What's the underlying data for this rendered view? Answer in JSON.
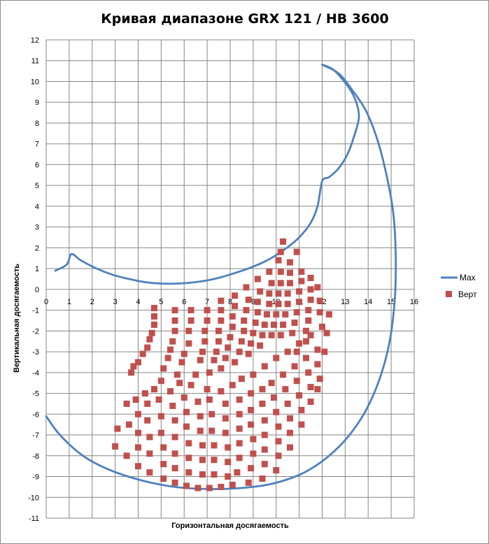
{
  "chart_data": {
    "type": "scatter",
    "title": "Кривая диапазоне GRX 121 / HB 3600",
    "xlabel": "Горизонтальная  досягаемость",
    "ylabel": "Вертикальная  досягаемость",
    "xlim": [
      0,
      16
    ],
    "ylim": [
      -11,
      12
    ],
    "xticks": [
      0,
      1,
      2,
      3,
      4,
      5,
      6,
      7,
      8,
      9,
      10,
      11,
      12,
      13,
      14,
      15,
      16
    ],
    "yticks": [
      12,
      11,
      10,
      9,
      8,
      7,
      6,
      5,
      4,
      3,
      2,
      1,
      0,
      -1,
      -2,
      -3,
      -4,
      -5,
      -6,
      -7,
      -8,
      -9,
      -10,
      -11
    ],
    "grid": true,
    "legend_position": "right",
    "colors": {
      "max": "#4f81bd",
      "vert": "#c0504d",
      "grid": "#868686"
    },
    "series": [
      {
        "name": "Max",
        "kind": "line",
        "points": [
          [
            0.4,
            0.9
          ],
          [
            0.9,
            1.2
          ],
          [
            1.1,
            1.7
          ],
          [
            1.5,
            1.4
          ],
          [
            2.2,
            1.0
          ],
          [
            2.9,
            0.7
          ],
          [
            3.6,
            0.5
          ],
          [
            4.3,
            0.35
          ],
          [
            5.0,
            0.28
          ],
          [
            5.7,
            0.28
          ],
          [
            6.5,
            0.35
          ],
          [
            7.3,
            0.5
          ],
          [
            8.1,
            0.75
          ],
          [
            8.9,
            1.05
          ],
          [
            9.7,
            1.45
          ],
          [
            10.4,
            1.95
          ],
          [
            11.0,
            2.5
          ],
          [
            11.5,
            3.2
          ],
          [
            11.8,
            4.0
          ],
          [
            12.0,
            5.2
          ],
          [
            12.3,
            5.4
          ],
          [
            12.7,
            5.8
          ],
          [
            13.1,
            6.5
          ],
          [
            13.4,
            7.4
          ],
          [
            13.6,
            8.3
          ],
          [
            13.45,
            9.1
          ],
          [
            13.1,
            9.8
          ],
          [
            12.5,
            10.55
          ],
          [
            12.0,
            10.8
          ],
          [
            12.7,
            10.4
          ],
          [
            13.3,
            9.6
          ],
          [
            13.9,
            8.6
          ],
          [
            14.4,
            7.2
          ],
          [
            14.8,
            5.5
          ],
          [
            15.1,
            3.6
          ],
          [
            15.2,
            1.5
          ],
          [
            15.15,
            -0.6
          ],
          [
            14.9,
            -2.7
          ],
          [
            14.4,
            -4.6
          ],
          [
            13.7,
            -6.2
          ],
          [
            12.7,
            -7.6
          ],
          [
            11.4,
            -8.7
          ],
          [
            10.0,
            -9.3
          ],
          [
            8.5,
            -9.55
          ],
          [
            7.0,
            -9.6
          ],
          [
            5.6,
            -9.5
          ],
          [
            4.2,
            -9.2
          ],
          [
            2.8,
            -8.7
          ],
          [
            1.6,
            -8.0
          ],
          [
            0.6,
            -7.0
          ],
          [
            0.0,
            -6.1
          ]
        ]
      },
      {
        "name": "Верт",
        "kind": "markers",
        "points": [
          [
            4.7,
            -0.9
          ],
          [
            4.7,
            -1.3
          ],
          [
            4.7,
            -1.7
          ],
          [
            4.6,
            -2.1
          ],
          [
            4.5,
            -2.4
          ],
          [
            4.4,
            -2.8
          ],
          [
            4.2,
            -3.1
          ],
          [
            4.0,
            -3.5
          ],
          [
            3.8,
            -3.7
          ],
          [
            3.7,
            -4.0
          ],
          [
            5.6,
            -1.0
          ],
          [
            5.6,
            -1.5
          ],
          [
            5.6,
            -2.0
          ],
          [
            5.5,
            -2.5
          ],
          [
            5.4,
            -2.9
          ],
          [
            5.3,
            -3.3
          ],
          [
            5.1,
            -3.8
          ],
          [
            6.3,
            -1.0
          ],
          [
            6.3,
            -1.5
          ],
          [
            6.2,
            -2.0
          ],
          [
            6.2,
            -2.6
          ],
          [
            6.0,
            -3.1
          ],
          [
            5.9,
            -3.5
          ],
          [
            5.7,
            -4.1
          ],
          [
            7.0,
            -1.0
          ],
          [
            7.0,
            -1.5
          ],
          [
            6.9,
            -2.0
          ],
          [
            6.9,
            -2.5
          ],
          [
            6.8,
            -3.0
          ],
          [
            6.7,
            -3.4
          ],
          [
            6.5,
            -4.1
          ],
          [
            7.6,
            -0.55
          ],
          [
            7.6,
            -1.0
          ],
          [
            7.6,
            -1.5
          ],
          [
            7.5,
            -2.0
          ],
          [
            7.5,
            -2.5
          ],
          [
            7.4,
            -3.0
          ],
          [
            7.3,
            -3.4
          ],
          [
            7.1,
            -4.0
          ],
          [
            8.2,
            -0.3
          ],
          [
            8.2,
            -0.8
          ],
          [
            8.1,
            -1.3
          ],
          [
            8.1,
            -1.8
          ],
          [
            8.0,
            -2.3
          ],
          [
            7.9,
            -2.8
          ],
          [
            7.8,
            -3.3
          ],
          [
            7.6,
            -3.8
          ],
          [
            8.7,
            0.1
          ],
          [
            8.8,
            -0.5
          ],
          [
            8.7,
            -1.0
          ],
          [
            8.6,
            -1.5
          ],
          [
            8.6,
            -2.0
          ],
          [
            8.5,
            -2.5
          ],
          [
            8.4,
            -3.0
          ],
          [
            8.2,
            -3.5
          ],
          [
            9.2,
            0.5
          ],
          [
            9.3,
            -0.1
          ],
          [
            9.2,
            -0.6
          ],
          [
            9.2,
            -1.1
          ],
          [
            9.1,
            -1.6
          ],
          [
            9.0,
            -2.1
          ],
          [
            8.9,
            -2.6
          ],
          [
            8.8,
            -3.1
          ],
          [
            9.7,
            0.85
          ],
          [
            9.8,
            0.3
          ],
          [
            9.7,
            -0.2
          ],
          [
            9.7,
            -0.7
          ],
          [
            9.6,
            -1.2
          ],
          [
            9.5,
            -1.7
          ],
          [
            9.4,
            -2.2
          ],
          [
            9.3,
            -2.7
          ],
          [
            10.1,
            1.4
          ],
          [
            10.2,
            0.85
          ],
          [
            10.2,
            0.3
          ],
          [
            10.1,
            -0.2
          ],
          [
            10.1,
            -0.7
          ],
          [
            10.0,
            -1.2
          ],
          [
            9.9,
            -1.7
          ],
          [
            9.8,
            -2.2
          ],
          [
            10.3,
            2.3
          ],
          [
            10.2,
            1.8
          ],
          [
            10.6,
            1.3
          ],
          [
            10.6,
            0.8
          ],
          [
            10.6,
            0.3
          ],
          [
            10.5,
            -0.2
          ],
          [
            10.5,
            -0.7
          ],
          [
            10.4,
            -1.2
          ],
          [
            10.3,
            -1.7
          ],
          [
            10.2,
            -2.2
          ],
          [
            10.9,
            1.8
          ],
          [
            11.1,
            0.85
          ],
          [
            11.1,
            0.4
          ],
          [
            11.0,
            -0.1
          ],
          [
            11.0,
            -0.6
          ],
          [
            10.9,
            -1.1
          ],
          [
            10.8,
            -1.6
          ],
          [
            10.7,
            -2.1
          ],
          [
            11.5,
            0.55
          ],
          [
            11.5,
            0.0
          ],
          [
            11.5,
            -0.5
          ],
          [
            11.4,
            -1.0
          ],
          [
            11.4,
            -1.5
          ],
          [
            11.3,
            -2.0
          ],
          [
            11.3,
            -2.5
          ],
          [
            11.8,
            0.1
          ],
          [
            11.9,
            -0.55
          ],
          [
            11.9,
            -1.1
          ],
          [
            12.0,
            -1.8
          ],
          [
            12.2,
            -2.1
          ],
          [
            12.1,
            -3.0
          ],
          [
            12.3,
            -1.2
          ],
          [
            3.1,
            -6.7
          ],
          [
            3.0,
            -7.55
          ],
          [
            3.5,
            -5.5
          ],
          [
            3.6,
            -6.5
          ],
          [
            3.5,
            -8.0
          ],
          [
            3.9,
            -5.3
          ],
          [
            4.0,
            -6.0
          ],
          [
            4.0,
            -6.9
          ],
          [
            4.0,
            -7.6
          ],
          [
            4.0,
            -8.5
          ],
          [
            4.3,
            -5.0
          ],
          [
            4.4,
            -5.5
          ],
          [
            4.4,
            -6.3
          ],
          [
            4.5,
            -7.1
          ],
          [
            4.5,
            -7.9
          ],
          [
            4.5,
            -8.8
          ],
          [
            4.7,
            -4.8
          ],
          [
            4.9,
            -5.3
          ],
          [
            5.0,
            -6.1
          ],
          [
            5.0,
            -6.9
          ],
          [
            5.1,
            -7.6
          ],
          [
            5.1,
            -8.4
          ],
          [
            5.1,
            -9.1
          ],
          [
            5.0,
            -4.4
          ],
          [
            5.4,
            -4.9
          ],
          [
            5.5,
            -5.6
          ],
          [
            5.6,
            -6.3
          ],
          [
            5.6,
            -7.1
          ],
          [
            5.6,
            -7.9
          ],
          [
            5.6,
            -8.6
          ],
          [
            5.6,
            -9.3
          ],
          [
            5.8,
            -4.5
          ],
          [
            6.0,
            -5.2
          ],
          [
            6.1,
            -5.9
          ],
          [
            6.1,
            -6.6
          ],
          [
            6.2,
            -7.4
          ],
          [
            6.2,
            -8.1
          ],
          [
            6.2,
            -8.8
          ],
          [
            6.1,
            -9.45
          ],
          [
            6.3,
            -4.6
          ],
          [
            6.6,
            -5.4
          ],
          [
            6.7,
            -6.1
          ],
          [
            6.7,
            -6.8
          ],
          [
            6.8,
            -7.5
          ],
          [
            6.8,
            -8.2
          ],
          [
            6.8,
            -8.9
          ],
          [
            6.6,
            -9.55
          ],
          [
            7.0,
            -4.8
          ],
          [
            7.1,
            -5.3
          ],
          [
            7.2,
            -6.0
          ],
          [
            7.2,
            -6.8
          ],
          [
            7.3,
            -7.5
          ],
          [
            7.3,
            -8.2
          ],
          [
            7.3,
            -8.9
          ],
          [
            7.1,
            -9.55
          ],
          [
            7.6,
            -4.9
          ],
          [
            7.8,
            -5.5
          ],
          [
            7.8,
            -6.2
          ],
          [
            7.8,
            -6.9
          ],
          [
            7.9,
            -7.6
          ],
          [
            7.9,
            -8.3
          ],
          [
            7.9,
            -9.0
          ],
          [
            7.6,
            -9.5
          ],
          [
            8.1,
            -4.6
          ],
          [
            8.4,
            -5.3
          ],
          [
            8.4,
            -6.0
          ],
          [
            8.4,
            -6.7
          ],
          [
            8.4,
            -7.4
          ],
          [
            8.4,
            -8.1
          ],
          [
            8.3,
            -8.8
          ],
          [
            8.1,
            -9.4
          ],
          [
            8.5,
            -4.3
          ],
          [
            8.9,
            -5.0
          ],
          [
            8.9,
            -5.8
          ],
          [
            8.9,
            -6.5
          ],
          [
            9.0,
            -7.2
          ],
          [
            9.0,
            -7.9
          ],
          [
            8.9,
            -8.6
          ],
          [
            8.8,
            -9.3
          ],
          [
            9.0,
            -4.1
          ],
          [
            9.4,
            -4.8
          ],
          [
            9.4,
            -5.5
          ],
          [
            9.5,
            -6.3
          ],
          [
            9.5,
            -7.0
          ],
          [
            9.5,
            -7.7
          ],
          [
            9.5,
            -8.4
          ],
          [
            9.4,
            -9.1
          ],
          [
            9.5,
            -3.7
          ],
          [
            9.8,
            -4.5
          ],
          [
            9.9,
            -5.2
          ],
          [
            10.0,
            -5.9
          ],
          [
            10.1,
            -6.6
          ],
          [
            10.1,
            -7.3
          ],
          [
            10.1,
            -8.0
          ],
          [
            10.0,
            -8.7
          ],
          [
            10.0,
            -3.3
          ],
          [
            10.3,
            -4.1
          ],
          [
            10.4,
            -4.8
          ],
          [
            10.5,
            -5.5
          ],
          [
            10.6,
            -6.2
          ],
          [
            10.6,
            -6.9
          ],
          [
            10.6,
            -7.6
          ],
          [
            10.5,
            -3.0
          ],
          [
            10.8,
            -3.7
          ],
          [
            10.9,
            -4.4
          ],
          [
            11.0,
            -5.1
          ],
          [
            11.1,
            -5.8
          ],
          [
            11.1,
            -6.5
          ],
          [
            11.0,
            -2.6
          ],
          [
            11.3,
            -3.3
          ],
          [
            11.4,
            -4.0
          ],
          [
            11.5,
            -4.7
          ],
          [
            11.5,
            -5.4
          ],
          [
            11.5,
            -2.2
          ],
          [
            11.8,
            -2.9
          ],
          [
            11.8,
            -3.6
          ],
          [
            11.9,
            -4.3
          ],
          [
            11.8,
            -4.8
          ],
          [
            10.9,
            -3.0
          ]
        ]
      }
    ]
  }
}
